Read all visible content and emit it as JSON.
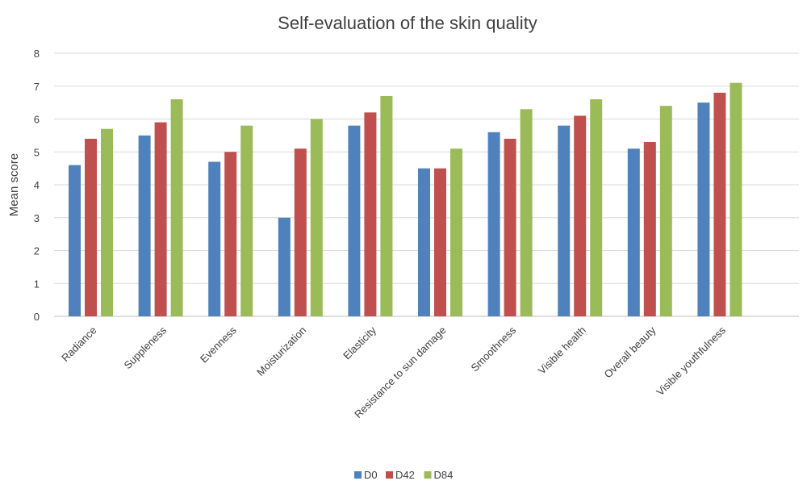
{
  "chart_data": {
    "type": "bar",
    "title": "Self-evaluation of the skin quality",
    "ylabel": "Mean score",
    "xlabel": "",
    "ylim": [
      0,
      8
    ],
    "yticks": [
      0,
      1,
      2,
      3,
      4,
      5,
      6,
      7,
      8
    ],
    "grid": true,
    "legend_position": "bottom",
    "categories": [
      "Radiance",
      "Suppleness",
      "Evenness",
      "Moisturization",
      "Elasticity",
      "Resistance to sun damage",
      "Smoothness",
      "Visible health",
      "Overall beauty",
      "Visible youthfulness"
    ],
    "series": [
      {
        "name": "D0",
        "color": "#4f81bd",
        "values": [
          4.6,
          5.5,
          4.7,
          3.0,
          5.8,
          4.5,
          5.6,
          5.8,
          5.1,
          6.5
        ]
      },
      {
        "name": "D42",
        "color": "#c0504d",
        "values": [
          5.4,
          5.9,
          5.0,
          5.1,
          6.2,
          4.5,
          5.4,
          6.1,
          5.3,
          6.8
        ]
      },
      {
        "name": "D84",
        "color": "#9bbb59",
        "values": [
          5.7,
          6.6,
          5.8,
          6.0,
          6.7,
          5.1,
          6.3,
          6.6,
          6.4,
          7.1
        ]
      }
    ]
  }
}
